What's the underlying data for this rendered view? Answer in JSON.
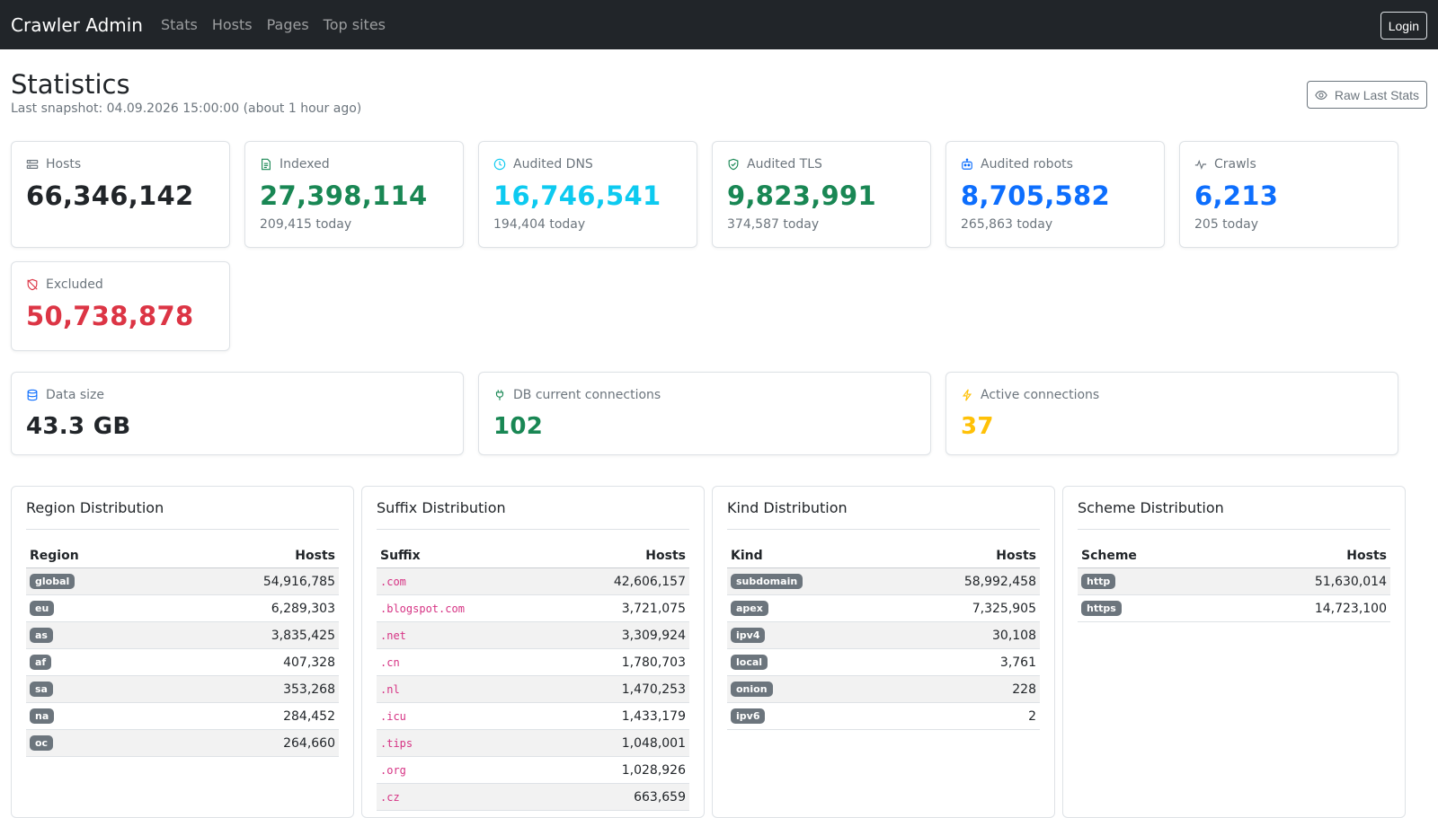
{
  "nav": {
    "brand": "Crawler Admin",
    "links": [
      "Stats",
      "Hosts",
      "Pages",
      "Top sites"
    ],
    "login_label": "Login"
  },
  "header": {
    "title": "Statistics",
    "snapshot": "Last snapshot: 04.09.2026 15:00:00 (about 1 hour ago)",
    "raw_button": "Raw Last Stats"
  },
  "stats": [
    {
      "label": "Hosts",
      "value": "66,346,142",
      "sub": "",
      "color": "#212529",
      "icon": "server-icon"
    },
    {
      "label": "Indexed",
      "value": "27,398,114",
      "sub": "209,415 today",
      "color": "#198754",
      "icon": "document-icon"
    },
    {
      "label": "Audited DNS",
      "value": "16,746,541",
      "sub": "194,404 today",
      "color": "#0dcaf0",
      "icon": "clock-icon"
    },
    {
      "label": "Audited TLS",
      "value": "9,823,991",
      "sub": "374,587 today",
      "color": "#198754",
      "icon": "shield-check-icon"
    },
    {
      "label": "Audited robots",
      "value": "8,705,582",
      "sub": "265,863 today",
      "color": "#0d6efd",
      "icon": "robot-icon"
    },
    {
      "label": "Crawls",
      "value": "6,213",
      "sub": "205 today",
      "color": "#0d6efd",
      "icon": "activity-icon"
    },
    {
      "label": "Excluded",
      "value": "50,738,878",
      "sub": "",
      "color": "#dc3545",
      "icon": "shield-slash-icon"
    }
  ],
  "system": [
    {
      "label": "Data size",
      "value": "43.3 GB",
      "color": "#212529",
      "icon": "database-icon"
    },
    {
      "label": "DB current connections",
      "value": "102",
      "color": "#198754",
      "icon": "plug-icon"
    },
    {
      "label": "Active connections",
      "value": "37",
      "color": "#ffc107",
      "icon": "lightning-icon"
    }
  ],
  "distributions": {
    "region": {
      "title": "Region Distribution",
      "col1": "Region",
      "col2": "Hosts",
      "rows": [
        {
          "key": "global",
          "value": "54,916,785"
        },
        {
          "key": "eu",
          "value": "6,289,303"
        },
        {
          "key": "as",
          "value": "3,835,425"
        },
        {
          "key": "af",
          "value": "407,328"
        },
        {
          "key": "sa",
          "value": "353,268"
        },
        {
          "key": "na",
          "value": "284,452"
        },
        {
          "key": "oc",
          "value": "264,660"
        }
      ]
    },
    "suffix": {
      "title": "Suffix Distribution",
      "col1": "Suffix",
      "col2": "Hosts",
      "rows": [
        {
          "key": ".com",
          "value": "42,606,157"
        },
        {
          "key": ".blogspot.com",
          "value": "3,721,075"
        },
        {
          "key": ".net",
          "value": "3,309,924"
        },
        {
          "key": ".cn",
          "value": "1,780,703"
        },
        {
          "key": ".nl",
          "value": "1,470,253"
        },
        {
          "key": ".icu",
          "value": "1,433,179"
        },
        {
          "key": ".tips",
          "value": "1,048,001"
        },
        {
          "key": ".org",
          "value": "1,028,926"
        },
        {
          "key": ".cz",
          "value": "663,659"
        }
      ]
    },
    "kind": {
      "title": "Kind Distribution",
      "col1": "Kind",
      "col2": "Hosts",
      "rows": [
        {
          "key": "subdomain",
          "value": "58,992,458"
        },
        {
          "key": "apex",
          "value": "7,325,905"
        },
        {
          "key": "ipv4",
          "value": "30,108"
        },
        {
          "key": "local",
          "value": "3,761"
        },
        {
          "key": "onion",
          "value": "228"
        },
        {
          "key": "ipv6",
          "value": "2"
        }
      ]
    },
    "scheme": {
      "title": "Scheme Distribution",
      "col1": "Scheme",
      "col2": "Hosts",
      "rows": [
        {
          "key": "http",
          "value": "51,630,014"
        },
        {
          "key": "https",
          "value": "14,723,100"
        }
      ]
    }
  }
}
